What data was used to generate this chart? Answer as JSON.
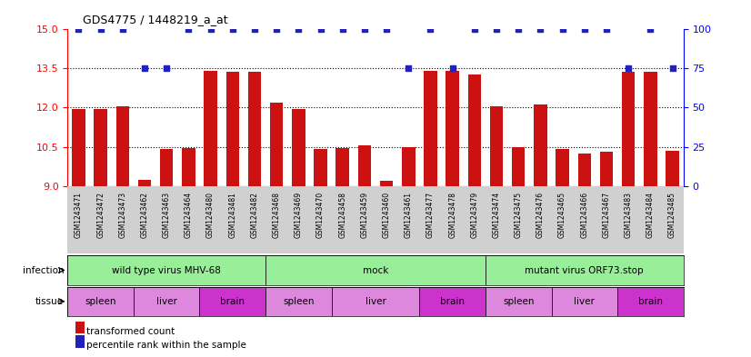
{
  "title": "GDS4775 / 1448219_a_at",
  "samples": [
    "GSM1243471",
    "GSM1243472",
    "GSM1243473",
    "GSM1243462",
    "GSM1243463",
    "GSM1243464",
    "GSM1243480",
    "GSM1243481",
    "GSM1243482",
    "GSM1243468",
    "GSM1243469",
    "GSM1243470",
    "GSM1243458",
    "GSM1243459",
    "GSM1243460",
    "GSM1243461",
    "GSM1243477",
    "GSM1243478",
    "GSM1243479",
    "GSM1243474",
    "GSM1243475",
    "GSM1243476",
    "GSM1243465",
    "GSM1243466",
    "GSM1243467",
    "GSM1243483",
    "GSM1243484",
    "GSM1243485"
  ],
  "red_values": [
    11.95,
    11.95,
    12.05,
    9.25,
    10.4,
    10.45,
    13.4,
    13.35,
    13.35,
    12.2,
    11.95,
    10.4,
    10.45,
    10.55,
    9.2,
    10.5,
    13.4,
    13.4,
    13.25,
    12.05,
    10.5,
    12.1,
    10.4,
    10.25,
    10.3,
    13.35,
    13.35,
    10.35
  ],
  "blue_values": [
    100,
    100,
    100,
    75,
    75,
    100,
    100,
    100,
    100,
    100,
    100,
    100,
    100,
    100,
    100,
    75,
    100,
    75,
    100,
    100,
    100,
    100,
    100,
    100,
    100,
    75,
    100,
    75
  ],
  "ylim_left": [
    9,
    15
  ],
  "ylim_right": [
    0,
    100
  ],
  "yticks_left": [
    9,
    10.5,
    12,
    13.5,
    15
  ],
  "yticks_right": [
    0,
    25,
    50,
    75,
    100
  ],
  "infection_groups": [
    {
      "label": "wild type virus MHV-68",
      "start": 0,
      "end": 9
    },
    {
      "label": "mock",
      "start": 9,
      "end": 19
    },
    {
      "label": "mutant virus ORF73.stop",
      "start": 19,
      "end": 28
    }
  ],
  "tissue_groups": [
    {
      "label": "spleen",
      "start": 0,
      "end": 3
    },
    {
      "label": "liver",
      "start": 3,
      "end": 6
    },
    {
      "label": "brain",
      "start": 6,
      "end": 9
    },
    {
      "label": "spleen",
      "start": 9,
      "end": 12
    },
    {
      "label": "liver",
      "start": 12,
      "end": 16
    },
    {
      "label": "brain",
      "start": 16,
      "end": 19
    },
    {
      "label": "spleen",
      "start": 19,
      "end": 22
    },
    {
      "label": "liver",
      "start": 22,
      "end": 25
    },
    {
      "label": "brain",
      "start": 25,
      "end": 28
    }
  ],
  "bar_color": "#cc1111",
  "dot_color": "#2222bb",
  "infection_color": "#99ee99",
  "spleen_color": "#dd88dd",
  "liver_color": "#dd88dd",
  "brain_color": "#cc33cc",
  "bar_bottom": 9,
  "xticklabel_area_color": "#cccccc",
  "infection_border_color": "#006600",
  "tissue_border_color": "#660066"
}
